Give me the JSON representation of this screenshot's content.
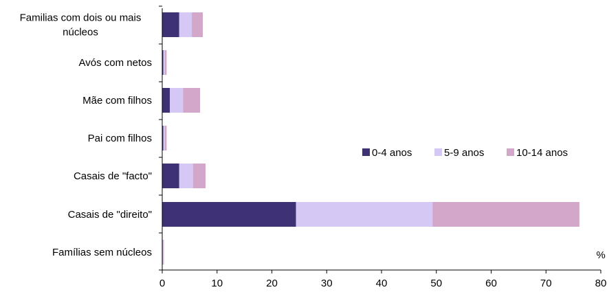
{
  "chart_data": {
    "type": "bar",
    "orientation": "horizontal",
    "stacked": true,
    "categories": [
      "Familias com dois ou mais núcleos",
      "Avós com netos",
      "Mãe com filhos",
      "Pai com filhos",
      "Casais de \"facto\"",
      "Casais de \"direito\"",
      "Famílias sem núcleos"
    ],
    "category_lines": [
      [
        "Familias com dois ou mais",
        "núcleos"
      ],
      [
        "Avós com netos"
      ],
      [
        "Mãe com filhos"
      ],
      [
        "Pai com filhos"
      ],
      [
        "Casais de \"facto\""
      ],
      [
        "Casais de \"direito\""
      ],
      [
        "Famílias sem núcleos"
      ]
    ],
    "series": [
      {
        "name": "0-4 anos",
        "color": "#3e3174",
        "values": [
          3.1,
          0.2,
          1.4,
          0.2,
          3.1,
          24.4,
          0.1
        ]
      },
      {
        "name": "5-9 anos",
        "color": "#d5c8f5",
        "values": [
          2.3,
          0.3,
          2.4,
          0.3,
          2.5,
          24.9,
          0.1
        ]
      },
      {
        "name": "10-14 anos",
        "color": "#d3a7c9",
        "values": [
          2.0,
          0.3,
          3.1,
          0.3,
          2.3,
          26.8,
          0.1
        ]
      }
    ],
    "xlim": [
      0,
      80
    ],
    "xticks": [
      "0",
      "10",
      "20",
      "30",
      "40",
      "50",
      "60",
      "70",
      "80"
    ],
    "unit_label": "%",
    "legend_position": "right",
    "grid": false
  }
}
